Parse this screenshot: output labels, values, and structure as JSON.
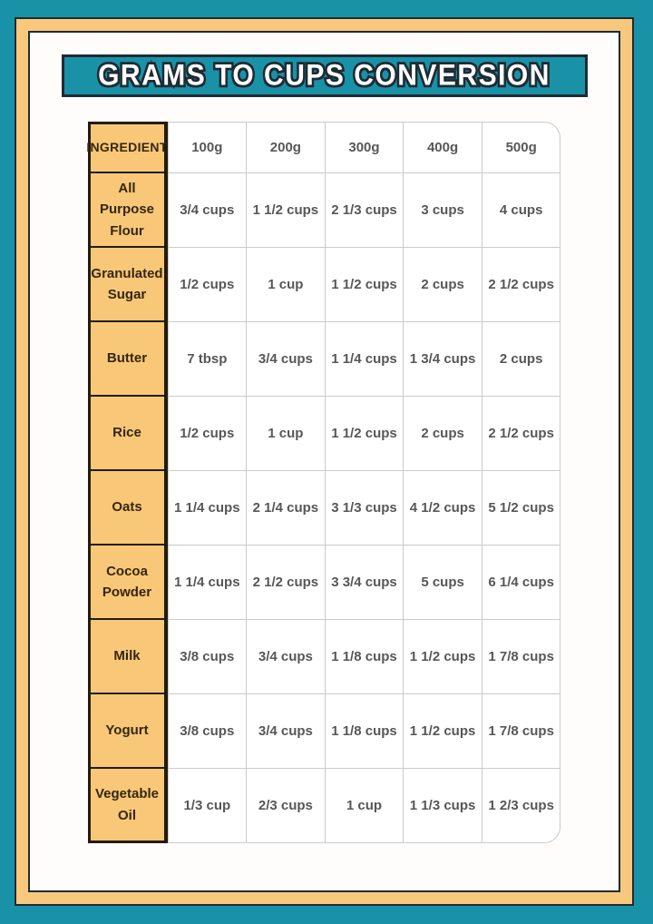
{
  "title": "GRAMS TO CUPS CONVERSION",
  "colors": {
    "teal": "#1992a8",
    "dark_outline": "#1e2b33",
    "orange_frame": "#f8c87d",
    "ingredient_fill": "#f8c878",
    "ingredient_border": "#241b0e",
    "grid_line": "#cacaca",
    "value_text": "#575757",
    "ingredient_text": "#35260f",
    "page_bg": "#fefdfb"
  },
  "table": {
    "header": {
      "ingredient_label": "INGREDIENT",
      "columns": [
        "100g",
        "200g",
        "300g",
        "400g",
        "500g"
      ]
    },
    "rows": [
      {
        "ingredient": "All Purpose Flour",
        "values": [
          "3/4 cups",
          "1 1/2 cups",
          "2 1/3 cups",
          "3 cups",
          "4 cups"
        ]
      },
      {
        "ingredient": "Granulated Sugar",
        "values": [
          "1/2 cups",
          "1 cup",
          "1 1/2 cups",
          "2 cups",
          "2 1/2 cups"
        ]
      },
      {
        "ingredient": "Butter",
        "values": [
          "7 tbsp",
          "3/4 cups",
          "1 1/4 cups",
          "1 3/4 cups",
          "2 cups"
        ]
      },
      {
        "ingredient": "Rice",
        "values": [
          "1/2 cups",
          "1 cup",
          "1 1/2 cups",
          "2 cups",
          "2 1/2 cups"
        ]
      },
      {
        "ingredient": "Oats",
        "values": [
          "1 1/4 cups",
          "2 1/4 cups",
          "3 1/3 cups",
          "4 1/2 cups",
          "5 1/2 cups"
        ]
      },
      {
        "ingredient": "Cocoa Powder",
        "values": [
          "1 1/4 cups",
          "2 1/2 cups",
          "3 3/4 cups",
          "5 cups",
          "6 1/4 cups"
        ]
      },
      {
        "ingredient": "Milk",
        "values": [
          "3/8 cups",
          "3/4 cups",
          "1 1/8 cups",
          "1 1/2 cups",
          "1 7/8 cups"
        ]
      },
      {
        "ingredient": "Yogurt",
        "values": [
          "3/8 cups",
          "3/4 cups",
          "1 1/8 cups",
          "1 1/2 cups",
          "1 7/8 cups"
        ]
      },
      {
        "ingredient": "Vegetable Oil",
        "values": [
          "1/3 cup",
          "2/3 cups",
          "1 cup",
          "1 1/3 cups",
          "1 2/3 cups"
        ]
      }
    ]
  },
  "chart_data": {
    "type": "table",
    "title": "GRAMS TO CUPS CONVERSION",
    "columns": [
      "INGREDIENT",
      "100g",
      "200g",
      "300g",
      "400g",
      "500g"
    ],
    "rows": [
      [
        "All Purpose Flour",
        "3/4 cups",
        "1 1/2 cups",
        "2 1/3 cups",
        "3 cups",
        "4 cups"
      ],
      [
        "Granulated Sugar",
        "1/2 cups",
        "1 cup",
        "1 1/2 cups",
        "2 cups",
        "2 1/2 cups"
      ],
      [
        "Butter",
        "7 tbsp",
        "3/4 cups",
        "1 1/4 cups",
        "1 3/4 cups",
        "2 cups"
      ],
      [
        "Rice",
        "1/2 cups",
        "1 cup",
        "1 1/2 cups",
        "2 cups",
        "2 1/2 cups"
      ],
      [
        "Oats",
        "1 1/4 cups",
        "2 1/4 cups",
        "3 1/3 cups",
        "4 1/2 cups",
        "5 1/2 cups"
      ],
      [
        "Cocoa Powder",
        "1 1/4 cups",
        "2 1/2 cups",
        "3 3/4 cups",
        "5 cups",
        "6 1/4 cups"
      ],
      [
        "Milk",
        "3/8 cups",
        "3/4 cups",
        "1 1/8 cups",
        "1 1/2 cups",
        "1 7/8 cups"
      ],
      [
        "Yogurt",
        "3/8 cups",
        "3/4 cups",
        "1 1/8 cups",
        "1 1/2 cups",
        "1 7/8 cups"
      ],
      [
        "Vegetable Oil",
        "1/3 cup",
        "2/3 cups",
        "1 cup",
        "1 1/3 cups",
        "1 2/3 cups"
      ]
    ]
  }
}
